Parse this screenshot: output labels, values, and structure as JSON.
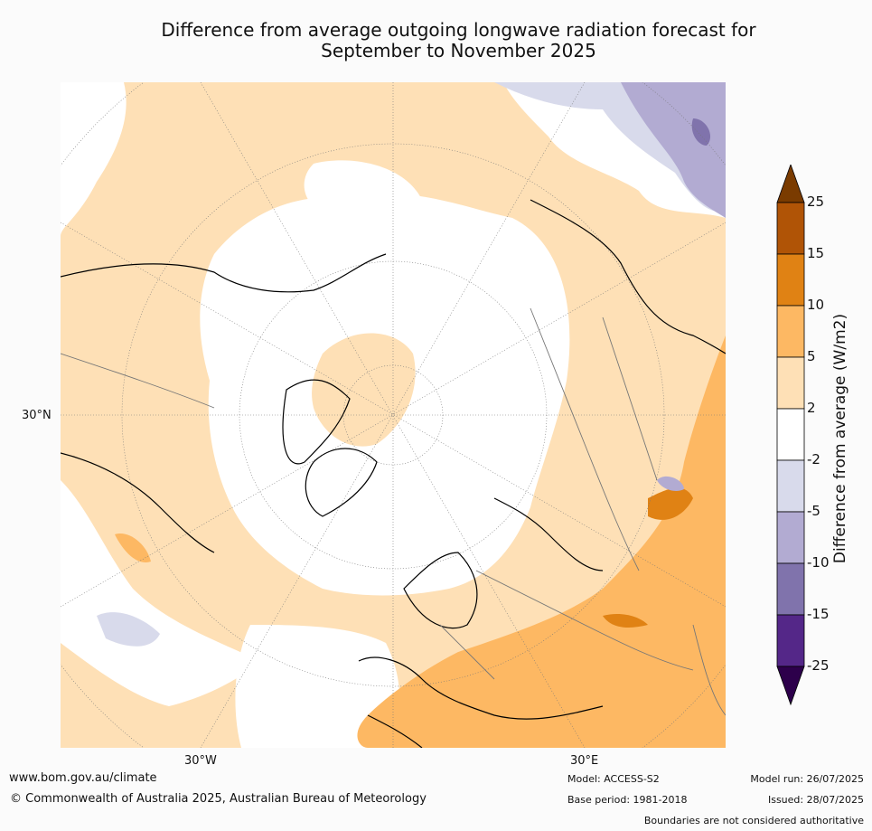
{
  "title_line1": "Difference from average outgoing longwave radiation forecast for",
  "title_line2": "September to November 2025",
  "map": {
    "lat_label": "30°N",
    "lon_labels": {
      "west": "30°W",
      "east": "30°E"
    }
  },
  "legend": {
    "title": "Difference from average (W/m2)",
    "ticks": [
      "25",
      "15",
      "10",
      "5",
      "2",
      "-2",
      "-5",
      "-10",
      "-15",
      "-25"
    ],
    "colors": [
      "#7a3b00",
      "#b05406",
      "#e08214",
      "#fdb863",
      "#fee0b6",
      "#ffffff",
      "#d8daeb",
      "#b2abd2",
      "#8073ac",
      "#542788",
      "#2d004b"
    ]
  },
  "footer": {
    "website": "www.bom.gov.au/climate",
    "copyright": "© Commonwealth of Australia 2025, Australian Bureau of Meteorology",
    "model": "Model: ACCESS-S2",
    "base_period": "Base period: 1981-2018",
    "model_run": "Model run: 26/07/2025",
    "issued": "Issued: 28/07/2025",
    "disclaimer": "Boundaries are not considered authoritative"
  }
}
